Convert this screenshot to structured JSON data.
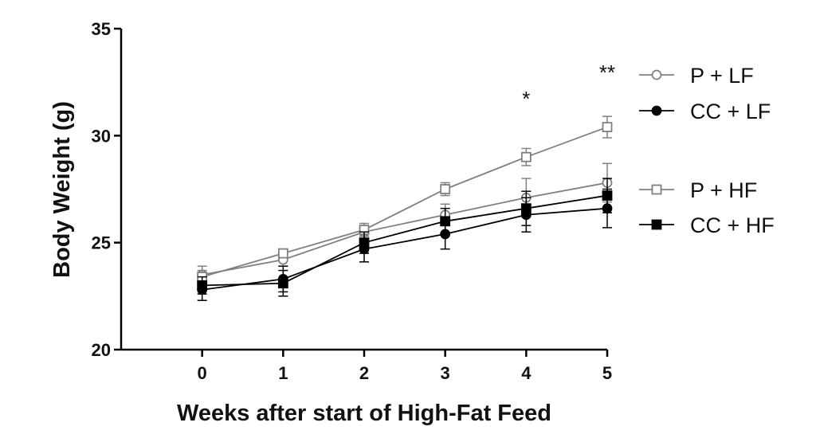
{
  "chart_data": {
    "type": "line",
    "title": "",
    "xlabel": "Weeks after start of High-Fat Feed",
    "ylabel": "Body Weight (g)",
    "x": [
      0,
      1,
      2,
      3,
      4,
      5
    ],
    "xticks": [
      "0",
      "1",
      "2",
      "3",
      "4",
      "5"
    ],
    "xlim": [
      -1,
      5
    ],
    "ylim": [
      20,
      35
    ],
    "yticks": [
      "20",
      "25",
      "30",
      "35"
    ],
    "grid": false,
    "legend_position": "right",
    "series": [
      {
        "name": "P + LF",
        "color": "#808080",
        "marker": "circle-open",
        "values": [
          23.5,
          24.2,
          25.5,
          26.3,
          27.1,
          27.8
        ],
        "errors": [
          0.4,
          0.3,
          0.3,
          0.5,
          0.9,
          0.9
        ]
      },
      {
        "name": "CC + LF",
        "color": "#000000",
        "marker": "circle-filled",
        "values": [
          22.8,
          23.3,
          24.7,
          25.4,
          26.3,
          26.6
        ],
        "errors": [
          0.5,
          0.6,
          0.6,
          0.7,
          0.8,
          0.9
        ]
      },
      {
        "name": "P + HF",
        "color": "#808080",
        "marker": "square-open",
        "values": [
          23.4,
          24.5,
          25.6,
          27.5,
          29.0,
          30.4
        ],
        "errors": [
          0.3,
          0.2,
          0.3,
          0.3,
          0.4,
          0.5
        ]
      },
      {
        "name": "CC + HF",
        "color": "#000000",
        "marker": "square-filled",
        "values": [
          23.0,
          23.1,
          25.0,
          26.0,
          26.6,
          27.2
        ],
        "errors": [
          0.4,
          0.6,
          0.5,
          0.6,
          0.8,
          0.8
        ]
      }
    ],
    "annotations": [
      {
        "text": "*",
        "x": 4
      },
      {
        "text": "**",
        "x": 5
      }
    ]
  }
}
